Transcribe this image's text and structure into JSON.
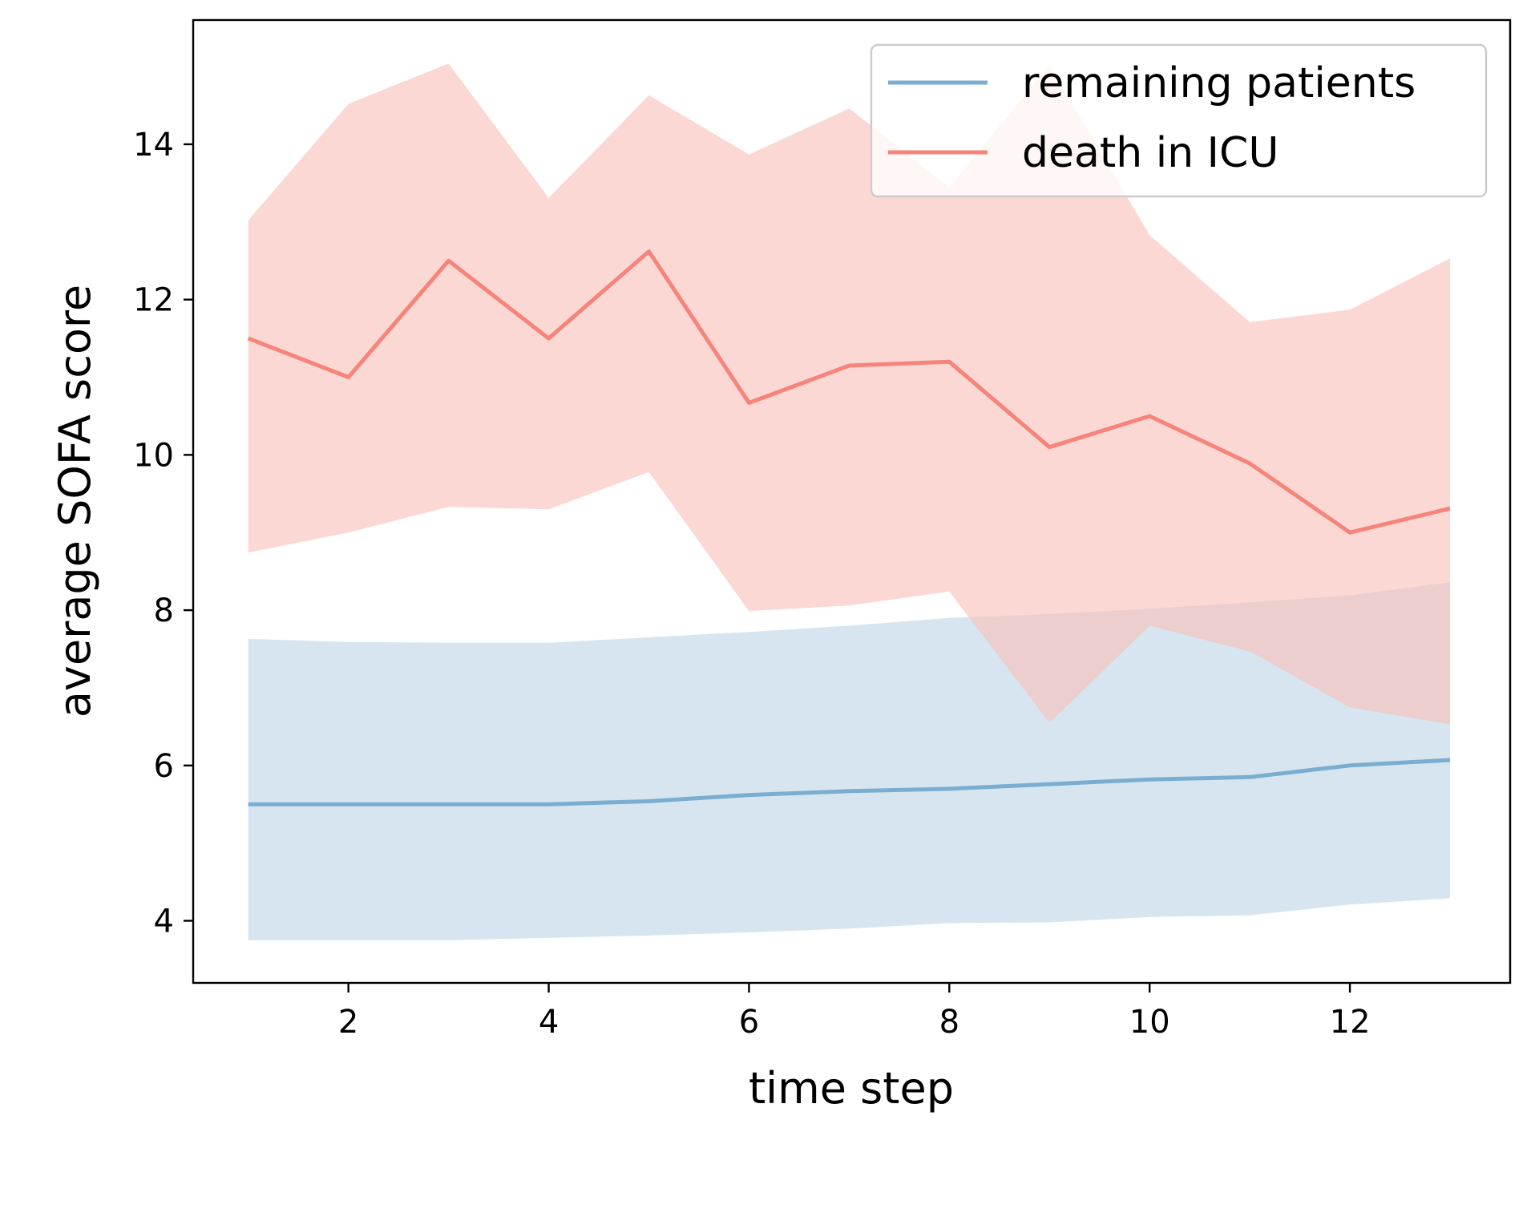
{
  "chart_data": {
    "type": "line",
    "title": "",
    "xlabel": "time step",
    "ylabel": "average SOFA score",
    "xlim": [
      0.45,
      13.6
    ],
    "ylim": [
      3.2,
      15.6
    ],
    "xticks": [
      2,
      4,
      6,
      8,
      10,
      12
    ],
    "yticks": [
      4,
      6,
      8,
      10,
      12,
      14
    ],
    "grid": false,
    "legend_position": "top-right",
    "x": [
      1,
      2,
      3,
      4,
      5,
      6,
      7,
      8,
      9,
      10,
      11,
      12,
      13
    ],
    "series": [
      {
        "name": "remaining patients",
        "color": "#7badd1",
        "band_color": "#d6e5ef",
        "values": [
          5.5,
          5.5,
          5.5,
          5.5,
          5.54,
          5.62,
          5.67,
          5.7,
          5.76,
          5.82,
          5.85,
          6.0,
          6.07
        ],
        "lower": [
          3.75,
          3.75,
          3.75,
          3.78,
          3.81,
          3.85,
          3.9,
          3.97,
          3.98,
          4.05,
          4.07,
          4.21,
          4.29
        ],
        "upper": [
          7.63,
          7.59,
          7.58,
          7.58,
          7.65,
          7.72,
          7.8,
          7.9,
          7.95,
          8.02,
          8.1,
          8.19,
          8.36
        ]
      },
      {
        "name": "death in ICU",
        "color": "#f6847a",
        "band_color": "#f8c0b8",
        "values": [
          11.5,
          11.0,
          12.5,
          11.5,
          12.62,
          10.67,
          11.15,
          11.2,
          10.1,
          10.5,
          9.89,
          9.0,
          9.31
        ],
        "lower": [
          8.74,
          9.0,
          9.33,
          9.3,
          9.78,
          7.99,
          8.06,
          8.24,
          6.55,
          7.8,
          7.47,
          6.75,
          6.53
        ],
        "upper": [
          13.02,
          14.52,
          15.04,
          13.31,
          14.63,
          13.87,
          14.46,
          13.45,
          15.02,
          12.83,
          11.71,
          11.87,
          12.53
        ]
      }
    ]
  }
}
